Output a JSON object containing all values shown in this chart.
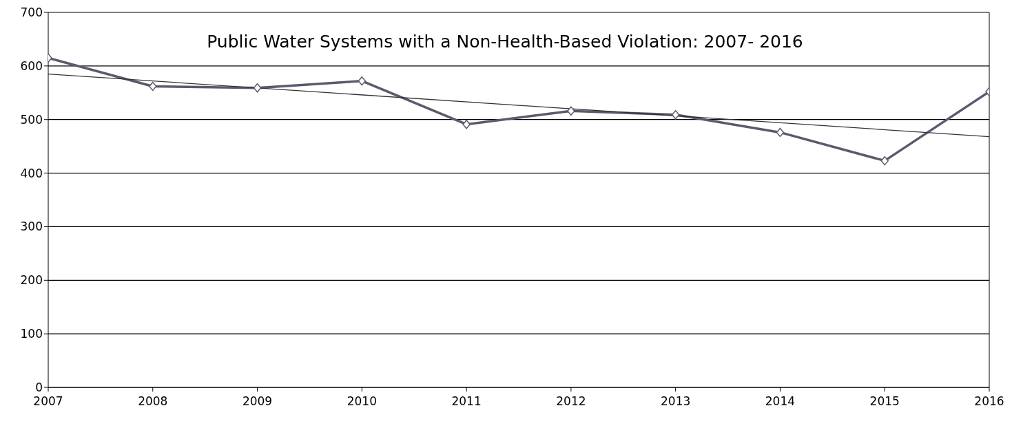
{
  "chart_data": {
    "type": "line",
    "title": "Public Water Systems with a Non-Health-Based Violation: 2007- 2016",
    "x": [
      2007,
      2008,
      2009,
      2010,
      2011,
      2012,
      2013,
      2014,
      2015,
      2016
    ],
    "series": [
      {
        "color": "#5a5a6e",
        "marker": "diamond",
        "values": [
          615,
          562,
          559,
          572,
          491,
          516,
          509,
          476,
          423,
          552
        ]
      },
      {
        "type": "line",
        "x": [
          2007,
          2016
        ],
        "color": "#333333",
        "marker": "none",
        "values": [
          585,
          468
        ]
      }
    ],
    "xlim": [
      2007,
      2016
    ],
    "xticks": [
      2007,
      2008,
      2009,
      2010,
      2011,
      2012,
      2013,
      2014,
      2015,
      2016
    ],
    "ylim": [
      0,
      700
    ],
    "yticks": [
      0,
      100,
      200,
      300,
      400,
      500,
      600,
      700
    ],
    "grid": "y"
  }
}
